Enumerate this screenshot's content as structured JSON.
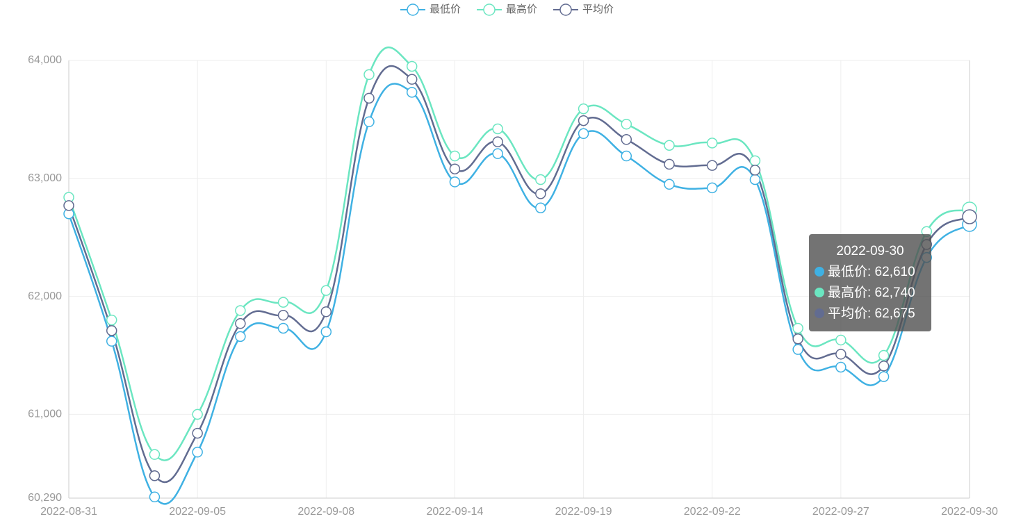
{
  "chart_data": {
    "type": "line",
    "categories": [
      "2022-08-31",
      null,
      null,
      "2022-09-05",
      null,
      null,
      "2022-09-08",
      null,
      null,
      "2022-09-14",
      null,
      null,
      "2022-09-19",
      null,
      null,
      "2022-09-22",
      null,
      null,
      "2022-09-27",
      null,
      null,
      "2022-09-30"
    ],
    "series": [
      {
        "name": "最低价",
        "color": "#3fb1e3",
        "values": [
          62700,
          61620,
          60300,
          60680,
          61660,
          61730,
          61700,
          63480,
          63730,
          62970,
          63210,
          62750,
          63380,
          63190,
          62950,
          62920,
          62990,
          61550,
          61400,
          61320,
          62330,
          62610
        ]
      },
      {
        "name": "最高价",
        "color": "#6be6c1",
        "values": [
          62840,
          61800,
          60660,
          61000,
          61880,
          61950,
          62050,
          63880,
          63950,
          63190,
          63420,
          62990,
          63590,
          63460,
          63280,
          63300,
          63150,
          61730,
          61630,
          61500,
          62550,
          62740
        ]
      },
      {
        "name": "平均价",
        "color": "#626c91",
        "values": [
          62770,
          61710,
          60480,
          60840,
          61770,
          61840,
          61870,
          63680,
          63840,
          63080,
          63310,
          62870,
          63490,
          63330,
          63120,
          63110,
          63070,
          61640,
          61510,
          61410,
          62440,
          62675
        ]
      }
    ],
    "ylim": [
      60290,
      64000
    ],
    "yticks": [
      {
        "value": 60290,
        "label": "60,290"
      },
      {
        "value": 61000,
        "label": "61,000"
      },
      {
        "value": 62000,
        "label": "62,000"
      },
      {
        "value": 63000,
        "label": "63,000"
      },
      {
        "value": 64000,
        "label": "64,000"
      }
    ],
    "grid": true,
    "legend": "top",
    "tooltip": {
      "title": "2022-09-30",
      "items": [
        "最低价: 62,610",
        "最高价: 62,740",
        "平均价: 62,675"
      ]
    }
  }
}
